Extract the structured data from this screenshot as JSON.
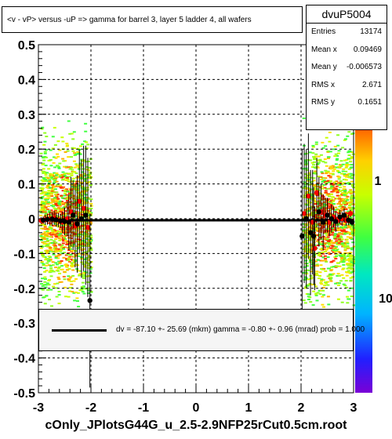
{
  "title": "<v - vP>       versus  -uP =>  gamma for barrel 3, layer 5 ladder 4, all wafers",
  "stats": {
    "name": "dvuP5004",
    "rows": [
      {
        "label": "Entries",
        "value": "13174"
      },
      {
        "label": "Mean x",
        "value": "0.09469"
      },
      {
        "label": "Mean y",
        "value": "-0.006573"
      },
      {
        "label": "RMS x",
        "value": "2.671"
      },
      {
        "label": "RMS y",
        "value": "0.1651"
      }
    ]
  },
  "legend": {
    "text": "dv =  -87.10 +- 25.69 (mkm) gamma =   -0.80 +-  0.96 (mrad) prob = 1.000"
  },
  "filename": "cOnly_JPlotsG44G_u_2.5-2.9NFP25rCut0.5cm.root",
  "palette": {
    "labels": [
      "1",
      "10"
    ]
  },
  "colors": {
    "fit_line": "#000000",
    "red_points": "#ff0000",
    "black_points": "#000000"
  },
  "chart_data": {
    "type": "scatter",
    "xlim": [
      -3,
      3
    ],
    "ylim": [
      -0.5,
      0.5
    ],
    "x_ticks": [
      "-3",
      "-2",
      "-1",
      "0",
      "1",
      "2",
      "3"
    ],
    "y_ticks": [
      "-0.5",
      "-0.4",
      "-0.3",
      "-0.2",
      "-0.1",
      "0",
      "0.1",
      "0.2",
      "0.3",
      "0.4",
      "0.5"
    ],
    "grid": true,
    "fit_line": {
      "x": [
        -3,
        3
      ],
      "y": [
        -0.0045,
        -0.0045
      ]
    },
    "series": [
      {
        "marker": "red",
        "points": [
          {
            "x": -2.95,
            "y": -0.005,
            "err": 0.01
          },
          {
            "x": -2.87,
            "y": -0.003,
            "err": 0.015
          },
          {
            "x": -2.78,
            "y": 0.0,
            "err": 0.02
          },
          {
            "x": -2.7,
            "y": 0.002,
            "err": 0.02
          },
          {
            "x": -2.62,
            "y": -0.004,
            "err": 0.02
          },
          {
            "x": -2.54,
            "y": -0.01,
            "err": 0.03
          },
          {
            "x": -2.45,
            "y": 0.0,
            "err": 0.05
          },
          {
            "x": -2.38,
            "y": 0.02,
            "err": 0.1
          },
          {
            "x": -2.3,
            "y": -0.02,
            "err": 0.12
          },
          {
            "x": -2.22,
            "y": 0.05,
            "err": 0.15
          },
          {
            "x": -2.14,
            "y": 0.03,
            "err": 0.18
          },
          {
            "x": -2.06,
            "y": -0.025,
            "err": 0.2
          },
          {
            "x": 2.06,
            "y": 0.015,
            "err": 0.2
          },
          {
            "x": 2.14,
            "y": 0.065,
            "err": 0.18
          },
          {
            "x": 2.22,
            "y": -0.01,
            "err": 0.15
          },
          {
            "x": 2.26,
            "y": -0.085,
            "err": 0.12
          },
          {
            "x": 2.3,
            "y": 0.075,
            "err": 0.1
          },
          {
            "x": 2.38,
            "y": 0.02,
            "err": 0.08
          },
          {
            "x": 2.46,
            "y": 0.01,
            "err": 0.05
          },
          {
            "x": 2.54,
            "y": -0.01,
            "err": 0.04
          },
          {
            "x": 2.62,
            "y": 0.005,
            "err": 0.03
          },
          {
            "x": 2.7,
            "y": -0.005,
            "err": 0.02
          },
          {
            "x": 2.78,
            "y": 0.0,
            "err": 0.02
          },
          {
            "x": 2.86,
            "y": -0.005,
            "err": 0.015
          },
          {
            "x": 2.94,
            "y": 0.015,
            "err": 0.01
          }
        ]
      },
      {
        "marker": "black",
        "points": [
          {
            "x": -2.91,
            "y": -0.004,
            "err": 0.01
          },
          {
            "x": -2.83,
            "y": -0.002,
            "err": 0.015
          },
          {
            "x": -2.74,
            "y": -0.001,
            "err": 0.02
          },
          {
            "x": -2.66,
            "y": -0.003,
            "err": 0.02
          },
          {
            "x": -2.58,
            "y": -0.006,
            "err": 0.02
          },
          {
            "x": -2.5,
            "y": -0.008,
            "err": 0.04
          },
          {
            "x": -2.42,
            "y": -0.01,
            "err": 0.08
          },
          {
            "x": -2.34,
            "y": 0.01,
            "err": 0.1
          },
          {
            "x": -2.26,
            "y": -0.015,
            "err": 0.14
          },
          {
            "x": -2.18,
            "y": 0.0,
            "err": 0.17
          },
          {
            "x": -2.1,
            "y": 0.01,
            "err": 0.2
          },
          {
            "x": -2.02,
            "y": -0.235,
            "err": 0.25
          },
          {
            "x": 2.02,
            "y": -0.05,
            "err": 0.25
          },
          {
            "x": 2.1,
            "y": 0.0,
            "err": 0.2
          },
          {
            "x": 2.18,
            "y": -0.04,
            "err": 0.18
          },
          {
            "x": 2.24,
            "y": -0.05,
            "err": 0.14
          },
          {
            "x": 2.34,
            "y": 0.02,
            "err": 0.1
          },
          {
            "x": 2.42,
            "y": -0.01,
            "err": 0.08
          },
          {
            "x": 2.5,
            "y": 0.01,
            "err": 0.05
          },
          {
            "x": 2.58,
            "y": 0.0,
            "err": 0.04
          },
          {
            "x": 2.66,
            "y": -0.008,
            "err": 0.03
          },
          {
            "x": 2.74,
            "y": 0.005,
            "err": 0.02
          },
          {
            "x": 2.82,
            "y": 0.01,
            "err": 0.02
          },
          {
            "x": 2.9,
            "y": -0.004,
            "err": 0.015
          },
          {
            "x": 2.97,
            "y": -0.01,
            "err": 0.01
          }
        ]
      }
    ]
  }
}
